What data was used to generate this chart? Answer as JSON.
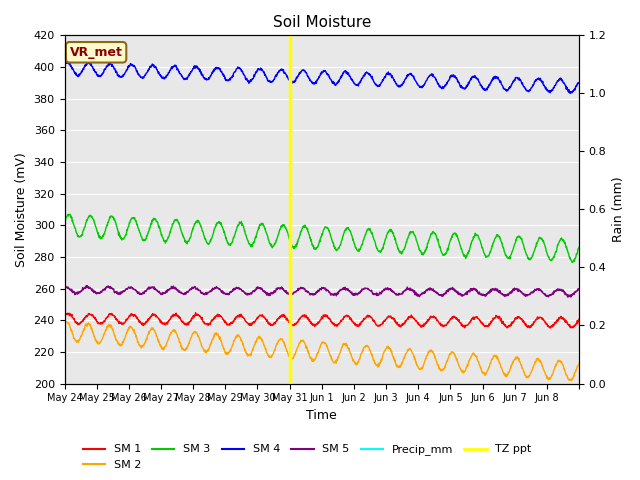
{
  "title": "Soil Moisture",
  "xlabel": "Time",
  "ylabel_left": "Soil Moisture (mV)",
  "ylabel_right": "Rain (mm)",
  "ylim_left": [
    200,
    420
  ],
  "ylim_right": [
    0.0,
    1.2
  ],
  "yticks_left": [
    200,
    220,
    240,
    260,
    280,
    300,
    320,
    340,
    360,
    380,
    400,
    420
  ],
  "yticks_right": [
    0.0,
    0.2,
    0.4,
    0.6,
    0.8,
    1.0,
    1.2
  ],
  "annotation_text": "VR_met",
  "annotation_color": "#8B0000",
  "annotation_bg": "#FFFACD",
  "annotation_edge": "#8B6914",
  "vline_day": 7,
  "vline_color": "yellow",
  "sm1_base": 241,
  "sm1_amp": 3,
  "sm1_trend": -0.15,
  "sm1_color": "red",
  "sm2_base": 233,
  "sm2_amp": 6,
  "sm2_trend": -1.6,
  "sm2_color": "orange",
  "sm3_base": 300,
  "sm3_amp": 7,
  "sm3_trend": -1.0,
  "sm3_color": "#00cc00",
  "sm4_base": 399,
  "sm4_amp": 4,
  "sm4_trend": -0.7,
  "sm4_color": "blue",
  "sm5_base": 259,
  "sm5_amp": 2,
  "sm5_trend": -0.1,
  "sm5_color": "purple",
  "precip_color": "cyan",
  "tz_ppt_color": "yellow",
  "bg_color": "#e8e8e8",
  "grid_color": "white",
  "tick_labels": [
    "May 24",
    "May 25",
    "May 26",
    "May 27",
    "May 28",
    "May 29",
    "May 30",
    "May 31",
    "Jun 1",
    "Jun 2",
    "Jun 3",
    "Jun 4",
    "Jun 5",
    "Jun 6",
    "Jun 7",
    "Jun 8"
  ],
  "num_days": 16
}
